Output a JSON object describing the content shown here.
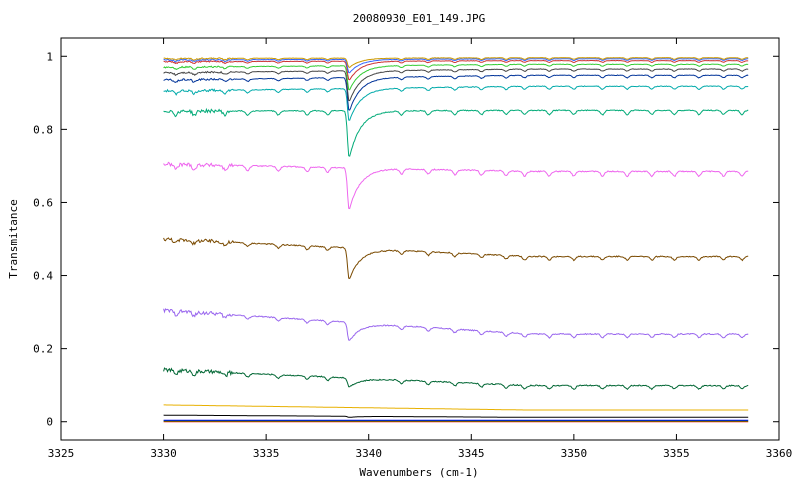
{
  "chart_data": {
    "type": "line",
    "title": "20080930_E01_149.JPG",
    "xlabel": "Wavenumbers (cm-1)",
    "ylabel": "Transmitance",
    "xlim": [
      3325,
      3360
    ],
    "ylim": [
      -0.05,
      1.05
    ],
    "xticks": [
      3325,
      3330,
      3335,
      3340,
      3345,
      3350,
      3355,
      3360
    ],
    "yticks": [
      0,
      0.2,
      0.4,
      0.6,
      0.8,
      1
    ],
    "ytick_labels": [
      "0",
      "0.2",
      "0.4",
      "0.6",
      "0.8",
      "1"
    ],
    "grid": false,
    "legend": "none",
    "x_range": [
      3330,
      3358.5
    ],
    "series": [
      {
        "color": "#ff0000",
        "baseline": 0.0,
        "start": 0.0,
        "end": 0.0,
        "dip_at_3339": 0.0
      },
      {
        "color": "#00aa00",
        "baseline": 0.002,
        "start": 0.002,
        "end": 0.002,
        "dip_at_3339": 0.002
      },
      {
        "color": "#0000ff",
        "baseline": 0.004,
        "start": 0.004,
        "end": 0.004,
        "dip_at_3339": 0.004
      },
      {
        "color": "#000000",
        "baseline": 0.015,
        "start": 0.018,
        "end": 0.012,
        "dip_at_3339": 0.012
      },
      {
        "color": "#e8b000",
        "baseline": 0.04,
        "start": 0.046,
        "end": 0.032,
        "dip_at_3339": 0.04
      },
      {
        "color": "#006633",
        "baseline": 0.105,
        "start": 0.142,
        "end": 0.099,
        "dip_at_3339": 0.08
      },
      {
        "color": "#9966ee",
        "baseline": 0.245,
        "start": 0.305,
        "end": 0.24,
        "dip_at_3339": 0.193
      },
      {
        "color": "#7a4a00",
        "baseline": 0.455,
        "start": 0.5,
        "end": 0.452,
        "dip_at_3339": 0.368
      },
      {
        "color": "#ee66ee",
        "baseline": 0.69,
        "start": 0.705,
        "end": 0.685,
        "dip_at_3339": 0.575
      },
      {
        "color": "#00aa77",
        "baseline": 0.855,
        "start": 0.85,
        "end": 0.852,
        "dip_at_3339": 0.725
      },
      {
        "color": "#00aaaa",
        "baseline": 0.92,
        "start": 0.905,
        "end": 0.918,
        "dip_at_3339": 0.83
      },
      {
        "color": "#003399",
        "baseline": 0.948,
        "start": 0.935,
        "end": 0.948,
        "dip_at_3339": 0.855
      },
      {
        "color": "#444444",
        "baseline": 0.965,
        "start": 0.955,
        "end": 0.965,
        "dip_at_3339": 0.88
      },
      {
        "color": "#33cc33",
        "baseline": 0.978,
        "start": 0.97,
        "end": 0.978,
        "dip_at_3339": 0.91
      },
      {
        "color": "#cc3333",
        "baseline": 0.988,
        "start": 0.985,
        "end": 0.988,
        "dip_at_3339": 0.935
      },
      {
        "color": "#3366ff",
        "baseline": 0.993,
        "start": 0.99,
        "end": 0.993,
        "dip_at_3339": 0.955
      },
      {
        "color": "#cc9900",
        "baseline": 0.996,
        "start": 0.994,
        "end": 0.996,
        "dip_at_3339": 0.97
      }
    ]
  }
}
